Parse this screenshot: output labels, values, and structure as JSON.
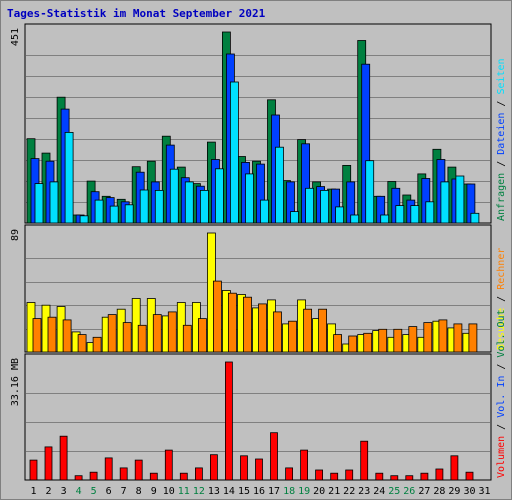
{
  "title": "Tages-Statistik im Monat September 2021",
  "colors": {
    "title": "#0000c0",
    "background": "#c0c0c0",
    "grid": "#808080",
    "anfragen": "#008040",
    "dateien": "#0040ff",
    "seiten": "#00e0ff",
    "besuche": "#ffff00",
    "rechner": "#ff8000",
    "kbytes": "#ff0000",
    "weekend_label": "#008040",
    "weekday_label": "#000000"
  },
  "chart_data": [
    {
      "type": "bar",
      "panel": "top",
      "ymax_label": "451",
      "ylim": [
        0,
        451
      ],
      "grid": true,
      "legend": [
        {
          "name": "Anfragen",
          "color": "#008040"
        },
        {
          "name": "Dateien",
          "color": "#0040ff"
        },
        {
          "name": "Seiten",
          "color": "#00e0ff"
        }
      ],
      "categories": [
        "1",
        "2",
        "3",
        "4",
        "5",
        "6",
        "7",
        "8",
        "9",
        "10",
        "11",
        "12",
        "13",
        "14",
        "15",
        "16",
        "17",
        "18",
        "19",
        "20",
        "21",
        "22",
        "23",
        "24",
        "25",
        "26",
        "27",
        "28",
        "29",
        "30",
        "31"
      ],
      "series": [
        {
          "name": "Anfragen",
          "values": [
            199,
            165,
            297,
            19,
            99,
            63,
            56,
            133,
            146,
            205,
            132,
            93,
            191,
            451,
            157,
            146,
            291,
            100,
            197,
            97,
            80,
            136,
            431,
            63,
            98,
            66,
            116,
            174,
            132,
            92,
            0
          ]
        },
        {
          "name": "Dateien",
          "values": [
            152,
            146,
            269,
            19,
            74,
            60,
            50,
            120,
            97,
            184,
            107,
            87,
            150,
            399,
            143,
            139,
            255,
            97,
            187,
            86,
            80,
            97,
            375,
            63,
            82,
            54,
            105,
            150,
            104,
            92,
            0
          ]
        },
        {
          "name": "Seiten",
          "values": [
            93,
            97,
            214,
            17,
            54,
            40,
            43,
            78,
            77,
            127,
            97,
            77,
            128,
            333,
            116,
            54,
            179,
            27,
            82,
            77,
            38,
            19,
            147,
            19,
            41,
            41,
            50,
            97,
            111,
            23,
            0
          ]
        }
      ]
    },
    {
      "type": "bar",
      "panel": "middle",
      "ymax_label": "89",
      "ylim": [
        0,
        89
      ],
      "grid": true,
      "legend": [
        {
          "name": "Besuche",
          "color": "#ffff00"
        },
        {
          "name": "Rechner",
          "color": "#ff8000"
        }
      ],
      "series": [
        {
          "name": "Besuche",
          "values": [
            37,
            35,
            34,
            15,
            7,
            26,
            32,
            40,
            40,
            27,
            37,
            37,
            89,
            46,
            43,
            33,
            39,
            21,
            39,
            25,
            21,
            6,
            13,
            16,
            11,
            13,
            11,
            23,
            18,
            14,
            0
          ]
        },
        {
          "name": "Rechner",
          "values": [
            25,
            26,
            24,
            13,
            11,
            28,
            22,
            20,
            28,
            30,
            20,
            25,
            53,
            44,
            41,
            36,
            30,
            23,
            32,
            32,
            13,
            12,
            14,
            17,
            17,
            19,
            22,
            24,
            21,
            21,
            0
          ]
        }
      ]
    },
    {
      "type": "bar",
      "panel": "bottom",
      "ymax_label": "33.16 MB",
      "ylim": [
        0,
        33.16
      ],
      "grid": true,
      "legend": [
        {
          "name": "Volumen",
          "color": "#ff0000"
        },
        {
          "name": "Vol. In",
          "color": "#0040ff"
        },
        {
          "name": "Vol. Out",
          "color": "#008040"
        }
      ],
      "series": [
        {
          "name": "Volumen",
          "values": [
            5.6,
            9.3,
            12.3,
            1.2,
            2.2,
            6.2,
            3.4,
            5.6,
            1.9,
            8.4,
            1.9,
            3.4,
            7.1,
            33.16,
            6.8,
            5.9,
            13.3,
            3.4,
            8.4,
            2.8,
            1.9,
            2.8,
            10.9,
            1.9,
            1.2,
            1.2,
            1.9,
            3.1,
            6.8,
            2.2,
            0
          ]
        }
      ]
    }
  ],
  "x_labels": [
    {
      "label": "1",
      "weekend": false
    },
    {
      "label": "2",
      "weekend": false
    },
    {
      "label": "3",
      "weekend": false
    },
    {
      "label": "4",
      "weekend": true
    },
    {
      "label": "5",
      "weekend": true
    },
    {
      "label": "6",
      "weekend": false
    },
    {
      "label": "7",
      "weekend": false
    },
    {
      "label": "8",
      "weekend": false
    },
    {
      "label": "9",
      "weekend": false
    },
    {
      "label": "10",
      "weekend": false
    },
    {
      "label": "11",
      "weekend": true
    },
    {
      "label": "12",
      "weekend": true
    },
    {
      "label": "13",
      "weekend": false
    },
    {
      "label": "14",
      "weekend": false
    },
    {
      "label": "15",
      "weekend": false
    },
    {
      "label": "16",
      "weekend": false
    },
    {
      "label": "17",
      "weekend": false
    },
    {
      "label": "18",
      "weekend": true
    },
    {
      "label": "19",
      "weekend": true
    },
    {
      "label": "20",
      "weekend": false
    },
    {
      "label": "21",
      "weekend": false
    },
    {
      "label": "22",
      "weekend": false
    },
    {
      "label": "23",
      "weekend": false
    },
    {
      "label": "24",
      "weekend": false
    },
    {
      "label": "25",
      "weekend": true
    },
    {
      "label": "26",
      "weekend": true
    },
    {
      "label": "27",
      "weekend": false
    },
    {
      "label": "28",
      "weekend": false
    },
    {
      "label": "29",
      "weekend": false
    },
    {
      "label": "30",
      "weekend": false
    },
    {
      "label": "31",
      "weekend": false
    }
  ],
  "separator": " / "
}
